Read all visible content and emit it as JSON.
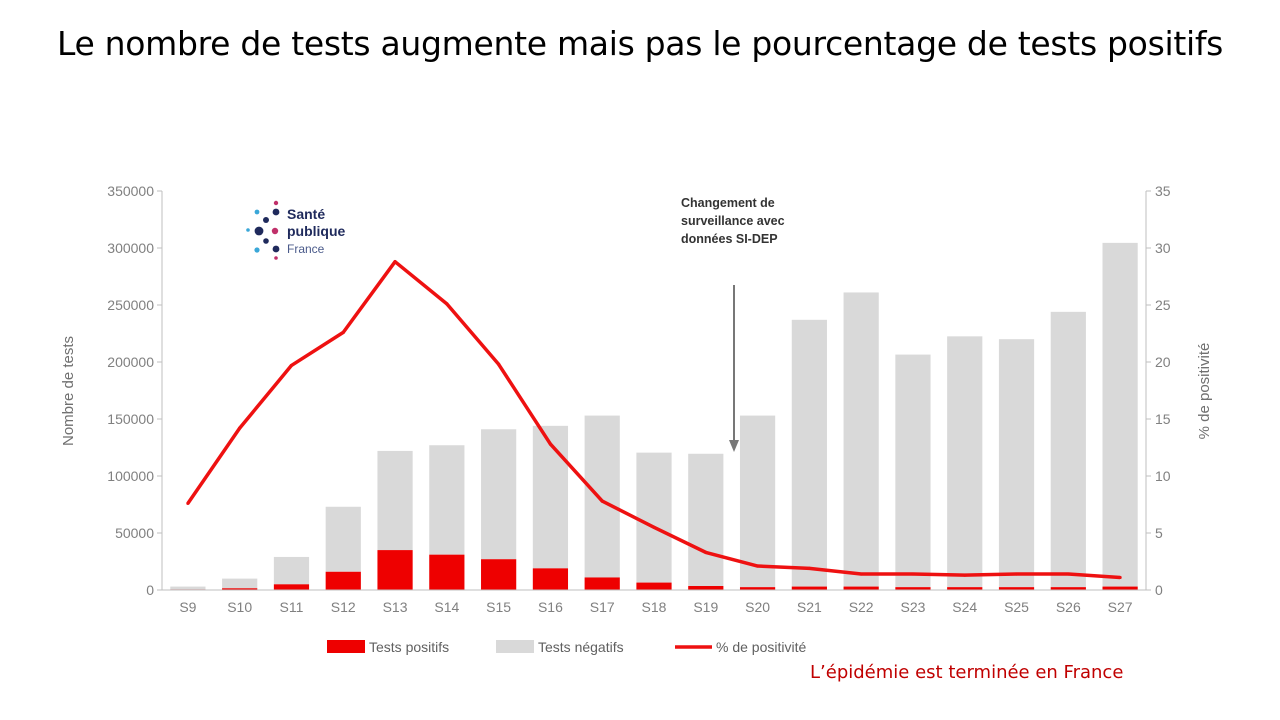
{
  "slide": {
    "title": "Le nombre de tests augmente mais pas le pourcentage de tests positifs",
    "conclusion": "L’épidémie est terminée en France"
  },
  "logo": {
    "line1": "Santé",
    "line2": "publique",
    "line3": "France"
  },
  "chart_data": {
    "type": "bar",
    "categories": [
      "S9",
      "S10",
      "S11",
      "S12",
      "S13",
      "S14",
      "S15",
      "S16",
      "S17",
      "S18",
      "S19",
      "S20",
      "S21",
      "S22",
      "S23",
      "S24",
      "S25",
      "S26",
      "S27"
    ],
    "stacked": true,
    "series": [
      {
        "name": "Tests positifs",
        "type": "bar",
        "color": "#ee0000",
        "values": [
          500,
          1500,
          5000,
          16000,
          35000,
          31000,
          27000,
          19000,
          11000,
          6500,
          3500,
          2500,
          3000,
          3000,
          2500,
          2500,
          2500,
          2500,
          3000
        ]
      },
      {
        "name": "Tests négatifs",
        "type": "bar",
        "color": "#d9d9d9",
        "values": [
          2500,
          8500,
          24000,
          57000,
          87000,
          96000,
          114000,
          125000,
          142000,
          114000,
          116000,
          150500,
          234000,
          258000,
          204000,
          220000,
          217500,
          241500,
          301500
        ]
      },
      {
        "name": "% de positivité",
        "type": "line",
        "axis": "right",
        "color": "#ee1111",
        "values": [
          7.6,
          14.2,
          19.7,
          22.6,
          28.8,
          25.1,
          19.8,
          12.8,
          7.8,
          5.5,
          3.3,
          2.1,
          1.9,
          1.4,
          1.4,
          1.3,
          1.4,
          1.4,
          1.1
        ]
      }
    ],
    "ylabel": "Nombre de tests",
    "ylim": [
      0,
      350000
    ],
    "y_ticks": [
      "0",
      "50000",
      "100000",
      "150000",
      "200000",
      "250000",
      "300000",
      "350000"
    ],
    "y2label": "% de positivité",
    "y2lim": [
      0,
      35
    ],
    "y2_ticks": [
      "0",
      "5",
      "10",
      "15",
      "20",
      "25",
      "30",
      "35"
    ],
    "grid": false,
    "legend_position": "bottom",
    "annotation": {
      "lines": [
        "Changement de",
        "surveillance avec",
        "données SI-DEP"
      ],
      "arrow_at": "S19/S20",
      "arrow_target_value": 120000
    }
  }
}
